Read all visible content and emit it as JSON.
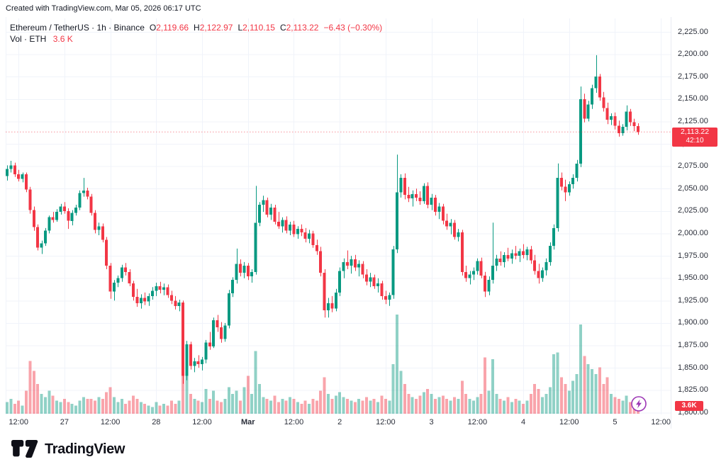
{
  "attribution": "Created with TradingView.com, Mar 05, 2026 06:17 UTC",
  "legend": {
    "symbol": "Ethereum / TetherUS · 1h · Binance",
    "labels": {
      "o": "O",
      "h": "H",
      "l": "L",
      "c": "C"
    },
    "o": "2,119.66",
    "h": "2,122.97",
    "l": "2,110.15",
    "c": "2,113.22",
    "change": "−6.43 (−0.30%)",
    "vol_label": "Vol · ETH",
    "vol_value": "3.6 K"
  },
  "price_badge": {
    "price": "2,113.22",
    "countdown": "42:10"
  },
  "volume_badge": {
    "text": "3.6K"
  },
  "logo": {
    "text": "TradingView"
  },
  "colors": {
    "up": "#089981",
    "down": "#f23645",
    "vol_up": "rgba(8,153,129,0.45)",
    "vol_down": "rgba(242,54,69,0.45)",
    "grid": "#f0f3fa",
    "axis_text": "#2a2e39",
    "last_price_line": "#f23645",
    "boost_purple": "#9c36b5",
    "text": "#131722"
  },
  "chart_data": {
    "type": "candlestick",
    "title": "Ethereum / TetherUS",
    "interval": "1h",
    "exchange": "Binance",
    "last_close": 2113.22,
    "ylim": [
      1798,
      2242
    ],
    "grid": true,
    "y_ticks": [
      2225,
      2200,
      2175,
      2150,
      2125,
      2100,
      2075,
      2050,
      2025,
      2000,
      1975,
      1950,
      1925,
      1900,
      1875,
      1850,
      1825,
      1800
    ],
    "x_ticks": [
      {
        "i": 3,
        "label": "12:00"
      },
      {
        "i": 15,
        "label": "27"
      },
      {
        "i": 27,
        "label": "12:00"
      },
      {
        "i": 39,
        "label": "28"
      },
      {
        "i": 51,
        "label": "12:00"
      },
      {
        "i": 63,
        "label": "Mar",
        "bold": true
      },
      {
        "i": 75,
        "label": "12:00"
      },
      {
        "i": 87,
        "label": "2"
      },
      {
        "i": 99,
        "label": "12:00"
      },
      {
        "i": 111,
        "label": "3"
      },
      {
        "i": 123,
        "label": "12:00"
      },
      {
        "i": 135,
        "label": "4"
      },
      {
        "i": 147,
        "label": "12:00"
      },
      {
        "i": 159,
        "label": "5"
      },
      {
        "i": 171,
        "label": "12:00"
      }
    ],
    "volume_max_k": 60,
    "candles_format": [
      "open",
      "high",
      "low",
      "close",
      "volume_k"
    ],
    "candles": [
      [
        2064,
        2076,
        2059,
        2072,
        7
      ],
      [
        2072,
        2081,
        2068,
        2076,
        9
      ],
      [
        2076,
        2079,
        2063,
        2066,
        6
      ],
      [
        2066,
        2071,
        2058,
        2061,
        8
      ],
      [
        2061,
        2068,
        2057,
        2066,
        5
      ],
      [
        2066,
        2068,
        2046,
        2049,
        14
      ],
      [
        2049,
        2052,
        2022,
        2026,
        32
      ],
      [
        2026,
        2030,
        2003,
        2007,
        26
      ],
      [
        2007,
        2010,
        1981,
        1984,
        18
      ],
      [
        1984,
        1992,
        1977,
        1989,
        12
      ],
      [
        1989,
        2006,
        1986,
        2003,
        10
      ],
      [
        2003,
        2020,
        2000,
        2018,
        14
      ],
      [
        2018,
        2024,
        2012,
        2015,
        11
      ],
      [
        2015,
        2027,
        2013,
        2024,
        8
      ],
      [
        2024,
        2033,
        2021,
        2030,
        7
      ],
      [
        2030,
        2035,
        2022,
        2025,
        9
      ],
      [
        2025,
        2028,
        2005,
        2014,
        7
      ],
      [
        2014,
        2026,
        2009,
        2023,
        6
      ],
      [
        2023,
        2032,
        2020,
        2029,
        5
      ],
      [
        2029,
        2048,
        2026,
        2045,
        8
      ],
      [
        2045,
        2062,
        2041,
        2048,
        10
      ],
      [
        2048,
        2051,
        2038,
        2041,
        9
      ],
      [
        2041,
        2044,
        2020,
        2023,
        9
      ],
      [
        2023,
        2026,
        2000,
        2004,
        8
      ],
      [
        2004,
        2012,
        1998,
        2008,
        10
      ],
      [
        2008,
        2011,
        1990,
        1993,
        9
      ],
      [
        1993,
        1996,
        1960,
        1964,
        13
      ],
      [
        1964,
        1967,
        1927,
        1935,
        16
      ],
      [
        1935,
        1948,
        1925,
        1945,
        10
      ],
      [
        1945,
        1953,
        1940,
        1950,
        7
      ],
      [
        1950,
        1965,
        1946,
        1962,
        9
      ],
      [
        1962,
        1967,
        1953,
        1957,
        6
      ],
      [
        1957,
        1960,
        1941,
        1944,
        8
      ],
      [
        1944,
        1947,
        1925,
        1929,
        11
      ],
      [
        1929,
        1938,
        1918,
        1922,
        9
      ],
      [
        1922,
        1932,
        1916,
        1928,
        7
      ],
      [
        1928,
        1934,
        1920,
        1924,
        6
      ],
      [
        1924,
        1933,
        1919,
        1930,
        5
      ],
      [
        1930,
        1940,
        1926,
        1936,
        4
      ],
      [
        1936,
        1945,
        1930,
        1941,
        7
      ],
      [
        1941,
        1946,
        1933,
        1937,
        5
      ],
      [
        1937,
        1944,
        1931,
        1940,
        6
      ],
      [
        1940,
        1943,
        1928,
        1931,
        5
      ],
      [
        1931,
        1936,
        1921,
        1925,
        8
      ],
      [
        1925,
        1930,
        1915,
        1919,
        6
      ],
      [
        1919,
        1926,
        1913,
        1923,
        8
      ],
      [
        1923,
        1925,
        1832,
        1841,
        35
      ],
      [
        1841,
        1880,
        1836,
        1876,
        28
      ],
      [
        1876,
        1879,
        1848,
        1852,
        12
      ],
      [
        1852,
        1861,
        1845,
        1857,
        9
      ],
      [
        1857,
        1864,
        1850,
        1854,
        8
      ],
      [
        1854,
        1862,
        1847,
        1859,
        7
      ],
      [
        1859,
        1881,
        1855,
        1878,
        15
      ],
      [
        1878,
        1890,
        1870,
        1874,
        9
      ],
      [
        1874,
        1906,
        1872,
        1903,
        14
      ],
      [
        1903,
        1909,
        1890,
        1895,
        8
      ],
      [
        1895,
        1901,
        1878,
        1882,
        7
      ],
      [
        1882,
        1900,
        1879,
        1897,
        9
      ],
      [
        1897,
        1937,
        1894,
        1933,
        16
      ],
      [
        1933,
        1951,
        1929,
        1948,
        12
      ],
      [
        1948,
        1983,
        1944,
        1966,
        14
      ],
      [
        1966,
        1971,
        1952,
        1956,
        8
      ],
      [
        1956,
        1968,
        1950,
        1964,
        16
      ],
      [
        1964,
        1967,
        1948,
        1952,
        23
      ],
      [
        1952,
        1960,
        1945,
        1957,
        12
      ],
      [
        1957,
        2053,
        1954,
        2012,
        38
      ],
      [
        2012,
        2035,
        2008,
        2032,
        18
      ],
      [
        2032,
        2042,
        2024,
        2037,
        10
      ],
      [
        2037,
        2040,
        2018,
        2021,
        9
      ],
      [
        2021,
        2033,
        2015,
        2029,
        8
      ],
      [
        2029,
        2032,
        2010,
        2013,
        11
      ],
      [
        2013,
        2024,
        2005,
        2008,
        7
      ],
      [
        2008,
        2018,
        2001,
        2015,
        9
      ],
      [
        2015,
        2019,
        2000,
        2003,
        8
      ],
      [
        2003,
        2013,
        1998,
        2010,
        10
      ],
      [
        2010,
        2014,
        1996,
        1999,
        9
      ],
      [
        1999,
        2008,
        1994,
        2005,
        7
      ],
      [
        2005,
        2010,
        1997,
        2001,
        6
      ],
      [
        2001,
        2006,
        1990,
        1994,
        8
      ],
      [
        1994,
        2004,
        1989,
        2000,
        6
      ],
      [
        2000,
        2003,
        1984,
        1987,
        9
      ],
      [
        1987,
        1993,
        1976,
        1980,
        8
      ],
      [
        1980,
        1985,
        1952,
        1956,
        14
      ],
      [
        1956,
        1960,
        1906,
        1914,
        22
      ],
      [
        1914,
        1928,
        1906,
        1922,
        12
      ],
      [
        1922,
        1930,
        1912,
        1916,
        9
      ],
      [
        1916,
        1938,
        1913,
        1934,
        11
      ],
      [
        1934,
        1962,
        1930,
        1958,
        13
      ],
      [
        1958,
        1972,
        1950,
        1968,
        10
      ],
      [
        1968,
        1981,
        1960,
        1964,
        9
      ],
      [
        1964,
        1975,
        1955,
        1971,
        8
      ],
      [
        1971,
        1976,
        1958,
        1962,
        7
      ],
      [
        1962,
        1970,
        1952,
        1966,
        9
      ],
      [
        1966,
        1969,
        1950,
        1954,
        8
      ],
      [
        1954,
        1960,
        1942,
        1946,
        10
      ],
      [
        1946,
        1956,
        1940,
        1951,
        8
      ],
      [
        1951,
        1954,
        1938,
        1941,
        9
      ],
      [
        1941,
        1950,
        1934,
        1944,
        7
      ],
      [
        1944,
        1947,
        1926,
        1930,
        11
      ],
      [
        1930,
        1936,
        1921,
        1926,
        9
      ],
      [
        1926,
        1934,
        1919,
        1931,
        8
      ],
      [
        1931,
        1986,
        1927,
        1982,
        30
      ],
      [
        1982,
        2088,
        1978,
        2046,
        60
      ],
      [
        2046,
        2066,
        2040,
        2062,
        26
      ],
      [
        2062,
        2067,
        2038,
        2043,
        18
      ],
      [
        2043,
        2052,
        2035,
        2039,
        12
      ],
      [
        2039,
        2048,
        2030,
        2044,
        10
      ],
      [
        2044,
        2050,
        2036,
        2040,
        9
      ],
      [
        2040,
        2047,
        2032,
        2036,
        11
      ],
      [
        2036,
        2056,
        2033,
        2053,
        13
      ],
      [
        2053,
        2057,
        2028,
        2032,
        15
      ],
      [
        2032,
        2044,
        2026,
        2040,
        12
      ],
      [
        2040,
        2043,
        2020,
        2024,
        9
      ],
      [
        2024,
        2034,
        2016,
        2030,
        10
      ],
      [
        2030,
        2033,
        2010,
        2014,
        11
      ],
      [
        2014,
        2022,
        2004,
        2008,
        9
      ],
      [
        2008,
        2016,
        1999,
        2012,
        8
      ],
      [
        2012,
        2015,
        1993,
        1996,
        10
      ],
      [
        1996,
        2005,
        1991,
        2001,
        9
      ],
      [
        2001,
        2004,
        1953,
        1957,
        20
      ],
      [
        1957,
        1964,
        1946,
        1950,
        12
      ],
      [
        1950,
        1958,
        1943,
        1954,
        9
      ],
      [
        1954,
        1962,
        1948,
        1958,
        8
      ],
      [
        1958,
        1972,
        1954,
        1969,
        10
      ],
      [
        1969,
        1973,
        1950,
        1953,
        12
      ],
      [
        1953,
        1957,
        1929,
        1935,
        34
      ],
      [
        1935,
        1952,
        1931,
        1948,
        14
      ],
      [
        1948,
        2012,
        1944,
        1964,
        33
      ],
      [
        1964,
        1976,
        1958,
        1972,
        12
      ],
      [
        1972,
        1980,
        1964,
        1968,
        9
      ],
      [
        1968,
        1979,
        1962,
        1976,
        8
      ],
      [
        1976,
        1984,
        1969,
        1972,
        10
      ],
      [
        1972,
        1982,
        1966,
        1978,
        7
      ],
      [
        1978,
        1986,
        1971,
        1975,
        9
      ],
      [
        1975,
        1983,
        1968,
        1980,
        8
      ],
      [
        1980,
        1988,
        1972,
        1976,
        6
      ],
      [
        1976,
        1985,
        1970,
        1982,
        8
      ],
      [
        1982,
        1986,
        1966,
        1970,
        12
      ],
      [
        1970,
        1976,
        1954,
        1958,
        18
      ],
      [
        1958,
        1966,
        1944,
        1950,
        15
      ],
      [
        1950,
        1962,
        1946,
        1959,
        10
      ],
      [
        1959,
        1972,
        1953,
        1968,
        12
      ],
      [
        1968,
        1990,
        1964,
        1986,
        16
      ],
      [
        1986,
        2010,
        1982,
        2006,
        36
      ],
      [
        2006,
        2078,
        2002,
        2062,
        37
      ],
      [
        2062,
        2068,
        2048,
        2052,
        22
      ],
      [
        2052,
        2060,
        2036,
        2046,
        18
      ],
      [
        2046,
        2058,
        2042,
        2055,
        14
      ],
      [
        2055,
        2066,
        2050,
        2062,
        20
      ],
      [
        2062,
        2082,
        2058,
        2078,
        24
      ],
      [
        2078,
        2164,
        2074,
        2150,
        54
      ],
      [
        2150,
        2156,
        2124,
        2128,
        35
      ],
      [
        2128,
        2148,
        2125,
        2144,
        30
      ],
      [
        2144,
        2166,
        2139,
        2162,
        27
      ],
      [
        2162,
        2199,
        2157,
        2175,
        24
      ],
      [
        2175,
        2178,
        2148,
        2152,
        28
      ],
      [
        2152,
        2158,
        2136,
        2140,
        18
      ],
      [
        2140,
        2146,
        2122,
        2127,
        22
      ],
      [
        2127,
        2134,
        2121,
        2131,
        12
      ],
      [
        2131,
        2135,
        2116,
        2120,
        10
      ],
      [
        2120,
        2126,
        2108,
        2112,
        9
      ],
      [
        2112,
        2122,
        2109,
        2119,
        8
      ],
      [
        2119,
        2143,
        2115,
        2136,
        11
      ],
      [
        2136,
        2139,
        2120,
        2124,
        7
      ],
      [
        2124,
        2128,
        2114,
        2119.66,
        6
      ],
      [
        2119.66,
        2122.97,
        2110.15,
        2113.22,
        3.6
      ]
    ]
  }
}
